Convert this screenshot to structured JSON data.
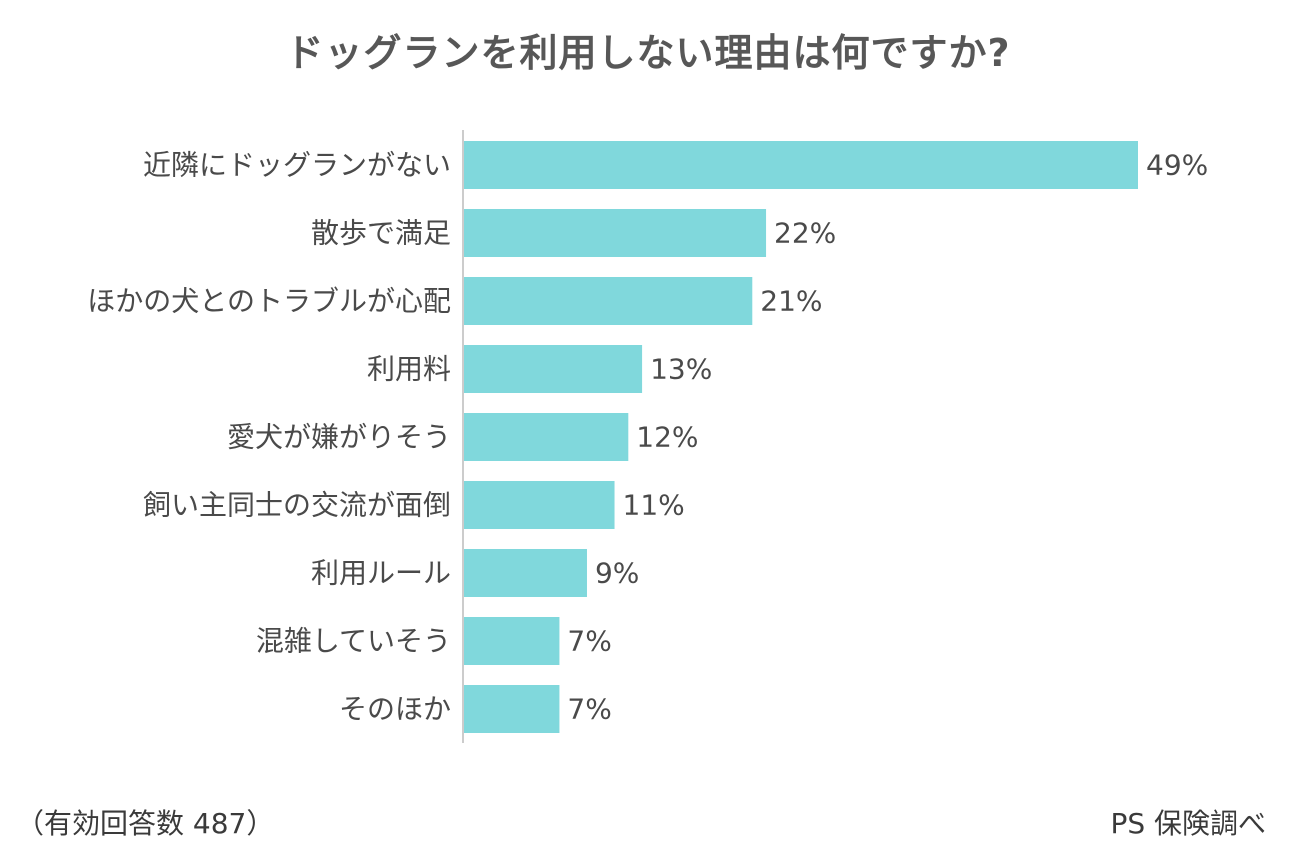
{
  "chart_data": {
    "type": "bar",
    "orientation": "horizontal",
    "title": "ドッグランを利用しない理由は何ですか?",
    "categories": [
      "近隣にドッグランがない",
      "散歩で満足",
      "ほかの犬とのトラブルが心配",
      "利用料",
      "愛犬が嫌がりそう",
      "飼い主同士の交流が面倒",
      "利用ルール",
      "混雑していそう",
      "そのほか"
    ],
    "values": [
      49,
      22,
      21,
      13,
      12,
      11,
      9,
      7,
      7
    ],
    "value_labels": [
      "49%",
      "22%",
      "21%",
      "13%",
      "12%",
      "11%",
      "9%",
      "7%",
      "7%"
    ],
    "unit": "%",
    "xlim": [
      0,
      49
    ],
    "bar_color": "#80d8dc",
    "axis_color": "#cccccc",
    "grid": false,
    "legend": "none"
  },
  "footnote": {
    "sample": "（有効回答数 487）",
    "source": "PS 保険調べ"
  }
}
